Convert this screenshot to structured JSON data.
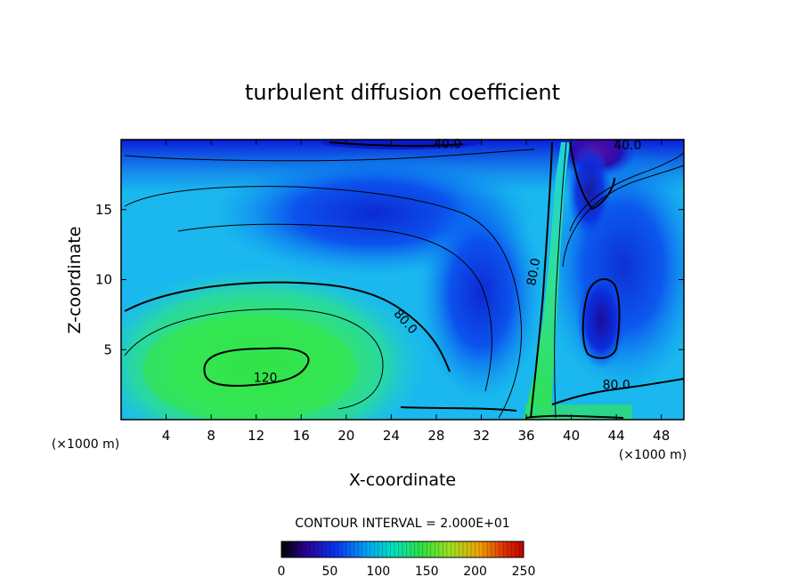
{
  "chart_data": {
    "type": "heatmap",
    "title": "turbulent diffusion coefficient",
    "xlabel": "X-coordinate",
    "ylabel": "Z-coordinate",
    "x_unit": "(×1000 m)",
    "xlim": [
      0,
      50
    ],
    "ylim": [
      0,
      20
    ],
    "x_ticks": [
      "4",
      "8",
      "12",
      "16",
      "20",
      "24",
      "28",
      "32",
      "36",
      "40",
      "44",
      "48"
    ],
    "x_tick_values": [
      4,
      8,
      12,
      16,
      20,
      24,
      28,
      32,
      36,
      40,
      44,
      48
    ],
    "y_ticks": [
      "5",
      "10",
      "15"
    ],
    "y_tick_values": [
      5,
      10,
      15
    ],
    "contour_interval_label": "CONTOUR INTERVAL = 2.000E+01",
    "contour_interval": 20,
    "contour_labels": [
      {
        "text": "40.0",
        "x": 29,
        "y": 19.4
      },
      {
        "text": "40.0",
        "x": 45,
        "y": 19.3
      },
      {
        "text": "80.0",
        "x": 25,
        "y": 6.8
      },
      {
        "text": "80.0",
        "x": 37,
        "y": 10.5
      },
      {
        "text": "80.0",
        "x": 44,
        "y": 2.2
      },
      {
        "text": "120.",
        "x": 13,
        "y": 2.7
      }
    ],
    "colorbar": {
      "range": [
        0,
        250
      ],
      "ticks": [
        "0",
        "50",
        "100",
        "150",
        "200",
        "250"
      ],
      "tick_values": [
        0,
        50,
        100,
        150,
        200,
        250
      ]
    },
    "field_features": [
      {
        "x": 13,
        "y": 4,
        "value": 125
      },
      {
        "x": 43,
        "y": 7,
        "value": 30
      },
      {
        "x": 42,
        "y": 19.5,
        "value": 10
      },
      {
        "x": 30,
        "y": 14,
        "value": 40
      },
      {
        "x": 38,
        "y": 6,
        "value": 100
      }
    ],
    "grid": false,
    "legend": "colorbar-bottom",
    "colors": {
      "low": "#2a00a0",
      "mid_low": "#0a40f0",
      "mid": "#00c8f0",
      "mid_high": "#30e060",
      "high": "#e03000"
    }
  }
}
